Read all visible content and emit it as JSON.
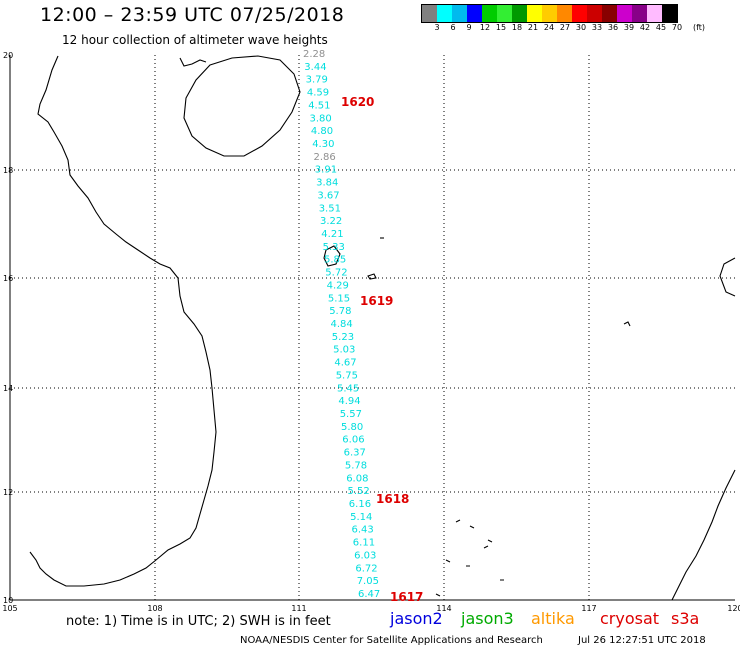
{
  "title": "12:00 – 23:59 UTC 07/25/2018",
  "subtitle": "12 hour collection of altimeter wave heights",
  "colorbar": {
    "colors": [
      "#808080",
      "#00ffff",
      "#00bbee",
      "#0000ff",
      "#00cc00",
      "#33ee33",
      "#009900",
      "#ffff00",
      "#ffcc00",
      "#ff8800",
      "#ff0000",
      "#cc0000",
      "#880000",
      "#cc00cc",
      "#880088",
      "#ffbbff",
      "#000000"
    ],
    "labels": [
      "3",
      "6",
      "9",
      "12",
      "15",
      "18",
      "21",
      "24",
      "27",
      "30",
      "33",
      "36",
      "39",
      "42",
      "45",
      "70",
      "(ft)"
    ]
  },
  "axes": {
    "lon_labels": [
      "105",
      "108",
      "111",
      "114",
      "117",
      "120"
    ],
    "lat_labels": [
      "20",
      "18",
      "16",
      "14",
      "12",
      "10"
    ]
  },
  "passes": [
    {
      "id": "1620",
      "color": "#dd0000"
    },
    {
      "id": "1619",
      "color": "#dd0000"
    },
    {
      "id": "1618",
      "color": "#dd0000"
    },
    {
      "id": "1617",
      "color": "#dd0000"
    }
  ],
  "wave_heights": [
    {
      "v": "2.28",
      "color": "#909090"
    },
    {
      "v": "3.44",
      "color": "#00dddd"
    },
    {
      "v": "3.79",
      "color": "#00dddd"
    },
    {
      "v": "4.59",
      "color": "#00dddd"
    },
    {
      "v": "4.51",
      "color": "#00dddd"
    },
    {
      "v": "3.80",
      "color": "#00dddd"
    },
    {
      "v": "4.80",
      "color": "#00dddd"
    },
    {
      "v": "4.30",
      "color": "#00dddd"
    },
    {
      "v": "2.86",
      "color": "#909090"
    },
    {
      "v": "3.91",
      "color": "#00dddd"
    },
    {
      "v": "3.84",
      "color": "#00dddd"
    },
    {
      "v": "3.67",
      "color": "#00dddd"
    },
    {
      "v": "3.51",
      "color": "#00dddd"
    },
    {
      "v": "3.22",
      "color": "#00dddd"
    },
    {
      "v": "4.21",
      "color": "#00dddd"
    },
    {
      "v": "5.33",
      "color": "#00dddd"
    },
    {
      "v": "5.85",
      "color": "#00dddd"
    },
    {
      "v": "5.72",
      "color": "#00dddd"
    },
    {
      "v": "4.29",
      "color": "#00dddd"
    },
    {
      "v": "5.15",
      "color": "#00dddd"
    },
    {
      "v": "5.78",
      "color": "#00dddd"
    },
    {
      "v": "4.84",
      "color": "#00dddd"
    },
    {
      "v": "5.23",
      "color": "#00dddd"
    },
    {
      "v": "5.03",
      "color": "#00dddd"
    },
    {
      "v": "4.67",
      "color": "#00dddd"
    },
    {
      "v": "5.75",
      "color": "#00dddd"
    },
    {
      "v": "5.45",
      "color": "#00dddd"
    },
    {
      "v": "4.94",
      "color": "#00dddd"
    },
    {
      "v": "5.57",
      "color": "#00dddd"
    },
    {
      "v": "5.80",
      "color": "#00dddd"
    },
    {
      "v": "6.06",
      "color": "#00dddd"
    },
    {
      "v": "6.37",
      "color": "#00dddd"
    },
    {
      "v": "5.78",
      "color": "#00dddd"
    },
    {
      "v": "6.08",
      "color": "#00dddd"
    },
    {
      "v": "5.52",
      "color": "#00dddd"
    },
    {
      "v": "6.16",
      "color": "#00dddd"
    },
    {
      "v": "5.14",
      "color": "#00dddd"
    },
    {
      "v": "6.43",
      "color": "#00dddd"
    },
    {
      "v": "6.11",
      "color": "#00dddd"
    },
    {
      "v": "6.03",
      "color": "#00dddd"
    },
    {
      "v": "6.72",
      "color": "#00dddd"
    },
    {
      "v": "7.05",
      "color": "#00dddd"
    },
    {
      "v": "6.47",
      "color": "#00dddd"
    }
  ],
  "note": "note:  1) Time is in UTC;  2) SWH is in feet",
  "legend": [
    {
      "label": "jason2",
      "color": "#0000dd"
    },
    {
      "label": "jason3",
      "color": "#00aa00"
    },
    {
      "label": "altika",
      "color": "#ff9900"
    },
    {
      "label": "cryosat",
      "color": "#dd0000"
    },
    {
      "label": "s3a",
      "color": "#dd0000"
    }
  ],
  "credit": "NOAA/NESDIS Center for Satellite Applications and Research",
  "timestamp": "Jul 26 12:27:51 UTC 2018"
}
